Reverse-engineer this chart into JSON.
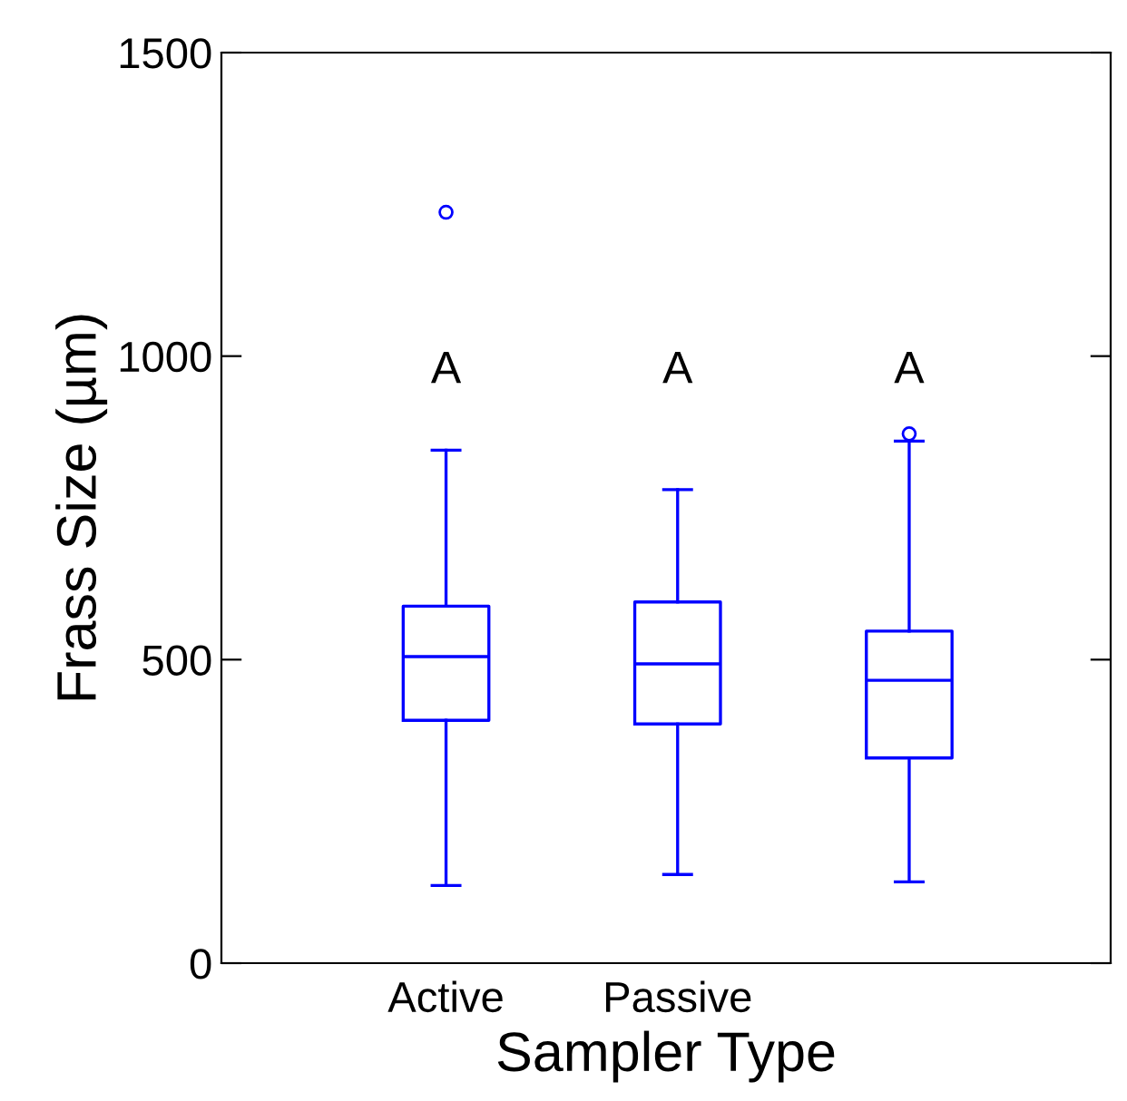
{
  "chart_data": {
    "type": "box",
    "xlabel": "Sampler Type",
    "ylabel": "Frass Size (µm)",
    "categories": [
      "Active",
      "Passive",
      null
    ],
    "boxes": [
      {
        "low": 128,
        "q1": 400,
        "median": 505,
        "q3": 588,
        "high": 845,
        "outliers": [
          1237
        ]
      },
      {
        "low": 146,
        "q1": 394,
        "median": 493,
        "q3": 595,
        "high": 780
      },
      {
        "low": 134,
        "q1": 338,
        "median": 466,
        "q3": 547,
        "high": 860,
        "outliers": [
          872
        ]
      }
    ],
    "color": "#0000ff",
    "ylim": [
      0,
      1500
    ],
    "yticks": [
      0,
      500,
      1000,
      1500
    ],
    "grid": false,
    "annotations": [
      "A",
      "A",
      "A"
    ]
  }
}
